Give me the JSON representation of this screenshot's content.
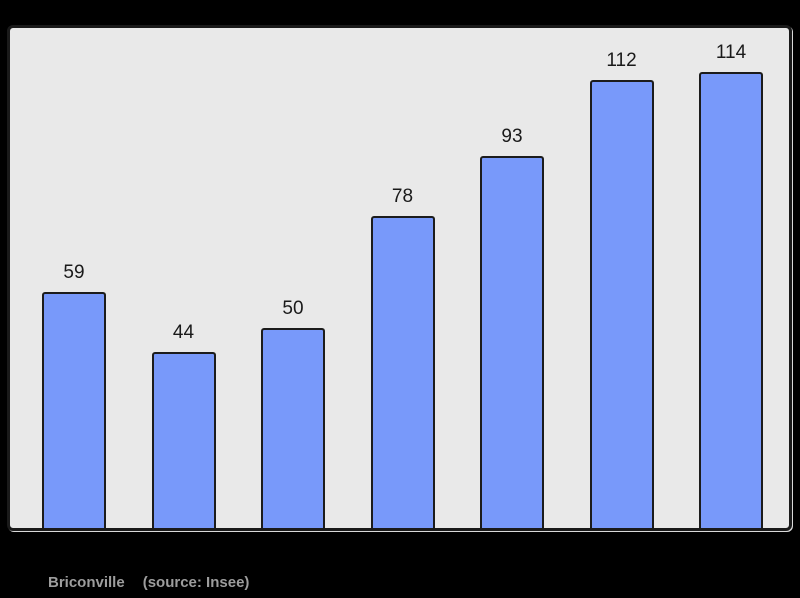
{
  "page": {
    "background_color": "#000000",
    "panel_background_color": "#e9e9e9",
    "panel_border_color": "#1a1a1a"
  },
  "chart_data": {
    "type": "bar",
    "categories": [
      "",
      "",
      "",
      "",
      "",
      "",
      ""
    ],
    "values": [
      59,
      44,
      50,
      78,
      93,
      112,
      114
    ],
    "data_labels": [
      "59",
      "44",
      "50",
      "78",
      "93",
      "112",
      "114"
    ],
    "title": "",
    "xlabel": "",
    "ylabel": "",
    "ylim": [
      0,
      126
    ],
    "grid": false,
    "legend": false,
    "bar_color": "#7899fa",
    "bar_border_color": "#1c1c1c",
    "label_color": "#1a1a1a"
  },
  "caption": {
    "place": "Briconville",
    "source": "(source: Insee)",
    "text_color": "#9d9d9d"
  }
}
